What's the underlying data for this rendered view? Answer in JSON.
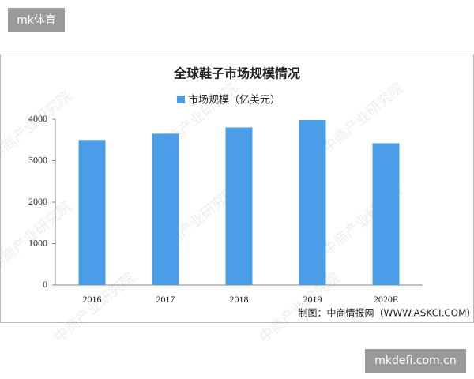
{
  "top_tag": "mk体育",
  "bottom_tag": "mkdefi.com.cn",
  "watermark": "中商产业研究院",
  "chart_data": {
    "type": "bar",
    "title": "全球鞋子市场规模情况",
    "categories": [
      "2016",
      "2017",
      "2018",
      "2019",
      "2020E"
    ],
    "series": [
      {
        "name": "市场规模（亿美元）",
        "color": "#4a9de6",
        "values": [
          3500,
          3650,
          3800,
          3980,
          3420
        ]
      }
    ],
    "ylim": [
      0,
      4000
    ],
    "yticks": [
      0,
      1000,
      2000,
      3000,
      4000
    ],
    "source": "制图：中商情报网（WWW.ASKCI.COM）"
  }
}
